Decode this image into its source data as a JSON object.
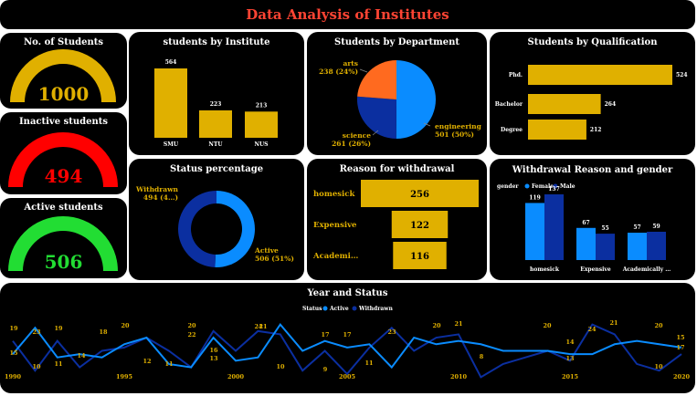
{
  "title": "Data Analysis of Institutes",
  "colors": {
    "gold": "#e0b000",
    "red": "#ff0000",
    "green": "#22dd33",
    "orange": "#ff6a1f",
    "blue": "#0a8cff",
    "navy": "#0b2fa0",
    "title_red": "#ff4433"
  },
  "kpis": {
    "students": {
      "label": "No. of Students",
      "value": "1000",
      "color": "#e0b000"
    },
    "inactive": {
      "label": "Inactive students",
      "value": "494",
      "color": "#ff0000"
    },
    "active": {
      "label": "Active students",
      "value": "506",
      "color": "#22dd33"
    }
  },
  "chart_data": [
    {
      "id": "by_institute",
      "type": "bar",
      "title": "students by Institute",
      "categories": [
        "SMU",
        "NTU",
        "NUS"
      ],
      "values": [
        564,
        223,
        213
      ],
      "value_labels": [
        "564",
        "223",
        "213"
      ]
    },
    {
      "id": "by_department",
      "type": "pie",
      "title": "Students by Department",
      "slices": [
        {
          "name": "engineering",
          "value": 501,
          "label": "501 (50%)",
          "color": "#0a8cff"
        },
        {
          "name": "science",
          "value": 261,
          "label": "261 (26%)",
          "color": "#0b2fa0"
        },
        {
          "name": "arts",
          "value": 238,
          "label": "238 (24%)",
          "color": "#ff6a1f"
        }
      ]
    },
    {
      "id": "by_qualification",
      "type": "bar",
      "orientation": "horizontal",
      "title": "Students by Qualification",
      "categories": [
        "Phd.",
        "Bachelor",
        "Degree"
      ],
      "values": [
        524,
        264,
        212
      ],
      "value_labels": [
        "524",
        "264",
        "212"
      ]
    },
    {
      "id": "status_percentage",
      "type": "pie",
      "donut": true,
      "title": "Status percentage",
      "slices": [
        {
          "name": "Active",
          "value": 506,
          "label": "506 (51%)",
          "color": "#0a8cff"
        },
        {
          "name": "Withdrawn",
          "value": 494,
          "label": "494 (4…)",
          "color": "#0b2fa0"
        }
      ]
    },
    {
      "id": "reason_withdrawal",
      "type": "bar",
      "orientation": "horizontal",
      "title": "Reason for withdrawal",
      "categories": [
        "homesick",
        "Expensive",
        "Academi…"
      ],
      "values": [
        256,
        122,
        116
      ],
      "value_labels": [
        "256",
        "122",
        "116"
      ]
    },
    {
      "id": "reason_gender",
      "type": "bar",
      "title": "Withdrawal Reason and gender",
      "legend_title": "gender",
      "categories": [
        "homesick",
        "Expensive",
        "Academically …"
      ],
      "series": [
        {
          "name": "Female",
          "values": [
            119,
            67,
            57
          ],
          "color": "#0a8cff"
        },
        {
          "name": "Male",
          "values": [
            137,
            55,
            59
          ],
          "color": "#0b2fa0"
        }
      ]
    },
    {
      "id": "year_status",
      "type": "line",
      "title": "Year and Status",
      "legend_title": "Status",
      "x_ticks": [
        "1990",
        "1995",
        "2000",
        "2005",
        "2010",
        "2015",
        "2020"
      ],
      "x": [
        1990,
        1991,
        1992,
        1993,
        1994,
        1995,
        1996,
        1997,
        1998,
        1999,
        2000,
        2001,
        2002,
        2003,
        2004,
        2005,
        2006,
        2007,
        2008,
        2009,
        2010,
        2011,
        2012,
        2013,
        2014,
        2015,
        2016,
        2017,
        2018,
        2019,
        2020
      ],
      "series": [
        {
          "name": "Active",
          "color": "#0a8cff",
          "values": [
            15,
            23,
            14,
            15,
            14,
            18,
            20,
            12,
            11,
            20,
            13,
            14,
            24,
            16,
            19,
            17,
            18,
            11,
            20,
            18,
            19,
            18,
            16,
            16,
            16,
            15,
            15,
            18,
            19,
            18,
            17
          ]
        },
        {
          "name": "Withdrawn",
          "color": "#0b2fa0",
          "values": [
            19,
            10,
            19,
            11,
            16,
            17,
            20,
            16,
            11,
            22,
            16,
            22,
            21,
            10,
            16,
            9,
            17,
            23,
            16,
            20,
            21,
            8,
            12,
            14,
            16,
            13,
            24,
            21,
            12,
            10,
            15
          ]
        }
      ],
      "point_labels": [
        {
          "x": 1990,
          "text": "19"
        },
        {
          "x": 1990.1,
          "text": "15"
        },
        {
          "x": 1991,
          "text": "23"
        },
        {
          "x": 1991.1,
          "text": "10"
        },
        {
          "x": 1992,
          "text": "19"
        },
        {
          "x": 1992.1,
          "text": "11"
        },
        {
          "x": 1993,
          "text": "14"
        },
        {
          "x": 1994,
          "text": "18"
        },
        {
          "x": 1995,
          "text": "20"
        },
        {
          "x": 1996,
          "text": "12"
        },
        {
          "x": 1997,
          "text": "11"
        },
        {
          "x": 1998,
          "text": "20"
        },
        {
          "x": 1998.1,
          "text": "22"
        },
        {
          "x": 1999,
          "text": "16"
        },
        {
          "x": 1999.1,
          "text": "13"
        },
        {
          "x": 2000,
          "text": "24"
        },
        {
          "x": 2000.1,
          "text": "21"
        },
        {
          "x": 2001,
          "text": "10"
        },
        {
          "x": 2003,
          "text": "17"
        },
        {
          "x": 2003.1,
          "text": "9"
        },
        {
          "x": 2004,
          "text": "17"
        },
        {
          "x": 2004.1,
          "text": "11"
        },
        {
          "x": 2006,
          "text": "23"
        },
        {
          "x": 2008,
          "text": "20"
        },
        {
          "x": 2009,
          "text": "21"
        },
        {
          "x": 2010,
          "text": "8"
        },
        {
          "x": 2014,
          "text": "20"
        },
        {
          "x": 2015,
          "text": "13"
        },
        {
          "x": 2015.5,
          "text": "14"
        },
        {
          "x": 2016,
          "text": "24"
        },
        {
          "x": 2017,
          "text": "21"
        },
        {
          "x": 2019,
          "text": "20"
        },
        {
          "x": 2019.1,
          "text": "10"
        },
        {
          "x": 2020,
          "text": "15"
        },
        {
          "x": 2020.1,
          "text": "17"
        }
      ]
    }
  ]
}
